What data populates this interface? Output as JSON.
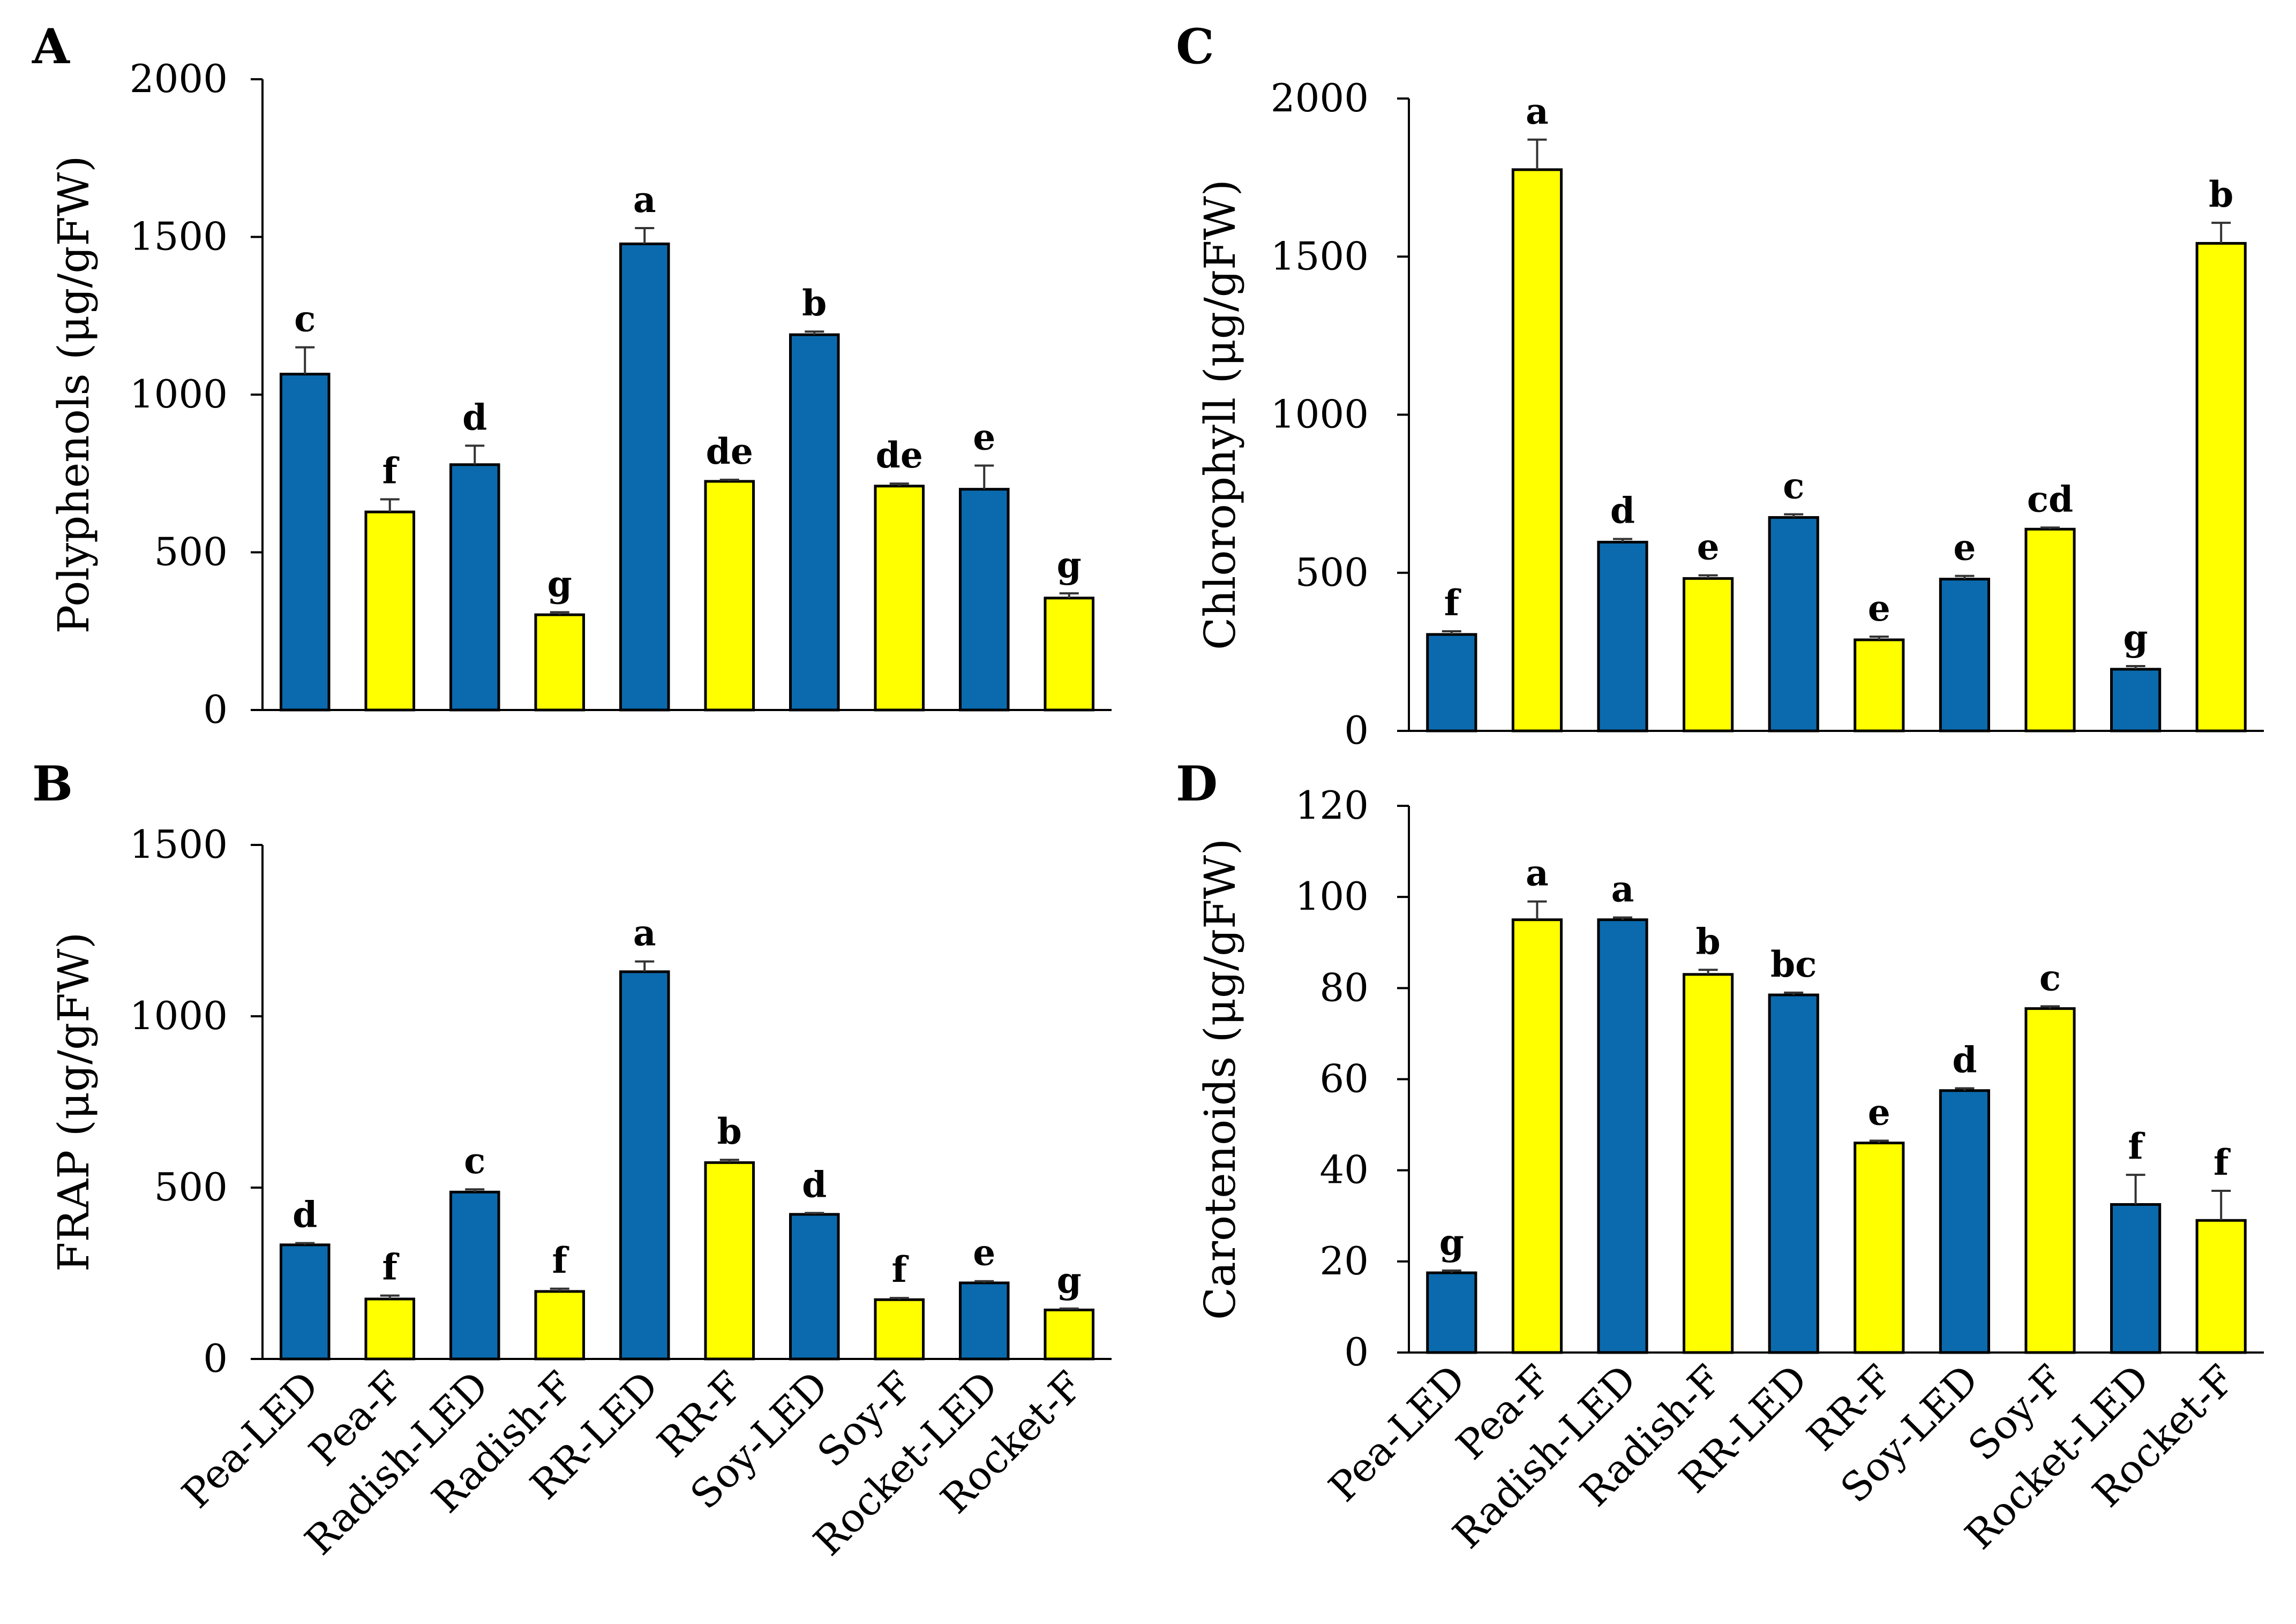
{
  "colors": {
    "led": "#0b6aad",
    "f": "#ffff00",
    "outline": "#000000"
  },
  "chart_data": [
    {
      "panel": "A",
      "type": "bar",
      "ylabel": "Polyphenols (μg/gFW)",
      "ylim": [
        0,
        2000
      ],
      "yticks": [
        0,
        500,
        1000,
        1500,
        2000
      ],
      "categories": [
        "Pea-LED",
        "Pea-F",
        "Radish-LED",
        "Radish-F",
        "RR-LED",
        "RR-F",
        "Soy-LED",
        "Soy-F",
        "Rocket-LED",
        "Rocket-F"
      ],
      "values": [
        1065,
        628,
        778,
        302,
        1478,
        725,
        1190,
        710,
        700,
        355
      ],
      "errors": [
        85,
        40,
        60,
        8,
        50,
        5,
        10,
        8,
        75,
        15
      ],
      "letters": [
        "c",
        "f",
        "d",
        "g",
        "a",
        "de",
        "b",
        "de",
        "e",
        "g"
      ],
      "show_category_labels": false
    },
    {
      "panel": "B",
      "type": "bar",
      "ylabel": "FRAP (μg/gFW)",
      "ylim": [
        0,
        1500
      ],
      "yticks": [
        0,
        500,
        1000,
        1500
      ],
      "categories": [
        "Pea-LED",
        "Pea-F",
        "Radish-LED",
        "Radish-F",
        "RR-LED",
        "RR-F",
        "Soy-LED",
        "Soy-F",
        "Rocket-LED",
        "Rocket-F"
      ],
      "values": [
        333,
        175,
        487,
        197,
        1130,
        573,
        422,
        173,
        222,
        143
      ],
      "errors": [
        5,
        10,
        8,
        8,
        30,
        8,
        4,
        5,
        5,
        4
      ],
      "letters": [
        "d",
        "f",
        "c",
        "f",
        "a",
        "b",
        "d",
        "f",
        "e",
        "g"
      ],
      "show_category_labels": true
    },
    {
      "panel": "C",
      "type": "bar",
      "ylabel": "Chlorophyll (μg/gFW)",
      "ylim": [
        0,
        2000
      ],
      "yticks": [
        0,
        500,
        1000,
        1500,
        2000
      ],
      "categories": [
        "Pea-LED",
        "Pea-F",
        "Radish-LED",
        "Radish-F",
        "RR-LED",
        "RR-F",
        "Soy-LED",
        "Soy-F",
        "Rocket-LED",
        "Rocket-F"
      ],
      "values": [
        305,
        1775,
        597,
        482,
        675,
        288,
        480,
        638,
        195,
        1542
      ],
      "errors": [
        10,
        95,
        10,
        10,
        10,
        10,
        10,
        5,
        10,
        65
      ],
      "letters": [
        "f",
        "a",
        "d",
        "e",
        "c",
        "e",
        "e",
        "cd",
        "g",
        "b"
      ],
      "show_category_labels": false
    },
    {
      "panel": "D",
      "type": "bar",
      "ylabel": "Carotenoids (μg/gFW)",
      "ylim": [
        0,
        120
      ],
      "yticks": [
        0,
        20,
        40,
        60,
        80,
        100,
        120
      ],
      "categories": [
        "Pea-LED",
        "Pea-F",
        "Radish-LED",
        "Radish-F",
        "RR-LED",
        "RR-F",
        "Soy-LED",
        "Soy-F",
        "Rocket-LED",
        "Rocket-F"
      ],
      "values": [
        17.5,
        95,
        95,
        83,
        78.5,
        46,
        57.5,
        75.5,
        32.5,
        29
      ],
      "errors": [
        0.5,
        4,
        0.5,
        1,
        0.5,
        0.5,
        0.5,
        0.5,
        6.5,
        6.5
      ],
      "letters": [
        "g",
        "a",
        "a",
        "b",
        "bc",
        "e",
        "d",
        "c",
        "f",
        "f"
      ],
      "show_category_labels": true
    }
  ]
}
